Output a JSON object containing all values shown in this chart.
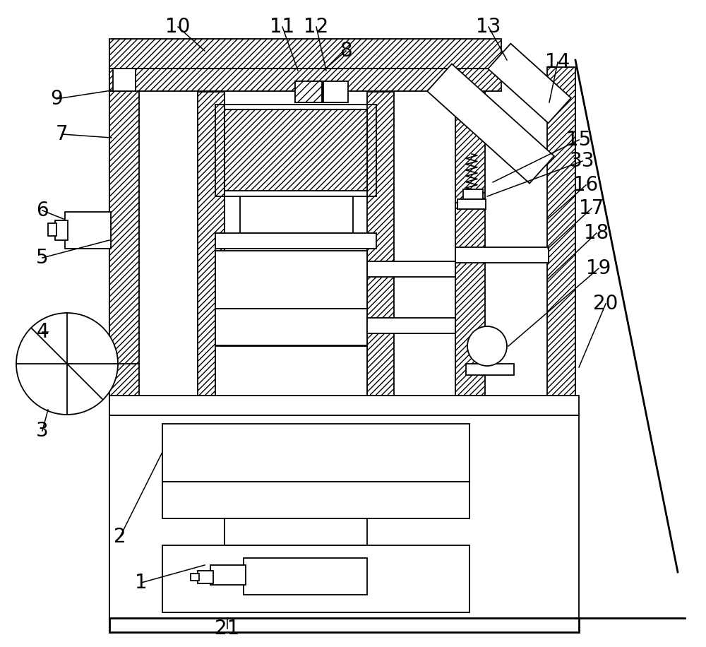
{
  "bg_color": "#ffffff",
  "lw": 1.3,
  "lw_thick": 2.0,
  "fig_w": 10.0,
  "fig_h": 9.16,
  "xmax": 1000,
  "ymax": 916
}
